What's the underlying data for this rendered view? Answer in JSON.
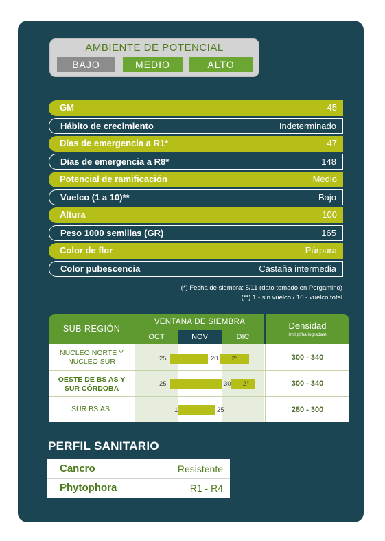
{
  "ambiente": {
    "title": "AMBIENTE DE POTENCIAL",
    "levels": [
      "BAJO",
      "MEDIO",
      "ALTO"
    ]
  },
  "attributes": [
    {
      "label": "GM",
      "value": "45"
    },
    {
      "label": "Hábito de crecimiento",
      "value": "Indeterminado"
    },
    {
      "label": "Días de emergencia a R1*",
      "value": "47"
    },
    {
      "label": "Días de emergencia a R8*",
      "value": "148"
    },
    {
      "label": "Potencial de ramificación",
      "value": "Medio"
    },
    {
      "label": "Vuelco (1 a 10)**",
      "value": "Bajo"
    },
    {
      "label": "Altura",
      "value": "100"
    },
    {
      "label": "Peso 1000 semillas (GR)",
      "value": "165"
    },
    {
      "label": "Color de flor",
      "value": "Púrpura"
    },
    {
      "label": "Color pubescencia",
      "value": "Castaña intermedia"
    }
  ],
  "notes": {
    "n1": "(*) Fecha de siembra: 5/11 (dato tomado en Pergamino)",
    "n2": "(**) 1 - sin vuelco / 10 - vuelco total"
  },
  "siembra": {
    "sub_region_header": "SUB REGIÓN",
    "ventana_header": "VENTANA DE SIEMBRA",
    "months": [
      "OCT",
      "NOV",
      "DIC"
    ],
    "densidad_header": "Densidad",
    "densidad_sub": "(mil pl/ha logradas)",
    "rows": [
      {
        "region_l1": "NÚCLEO NORTE Y",
        "region_l2": "NÚCLEO SUR",
        "start": "25",
        "end": "20",
        "second": "2°",
        "densidad": "300 - 340"
      },
      {
        "region_l1": "OESTE DE BS AS Y",
        "region_l2": "SUR CÓRDOBA",
        "start": "25",
        "end": "30",
        "second": "2°",
        "densidad": "300 - 340"
      },
      {
        "region_l1": "SUR BS.AS.",
        "region_l2": "",
        "start": "1",
        "end": "25",
        "second": "",
        "densidad": "280 - 300"
      }
    ]
  },
  "perfil": {
    "title": "PERFIL SANITARIO",
    "items": [
      {
        "name": "Cancro",
        "value": "Resistente"
      },
      {
        "name": "Phytophora",
        "value": "R1 - R4"
      }
    ]
  }
}
